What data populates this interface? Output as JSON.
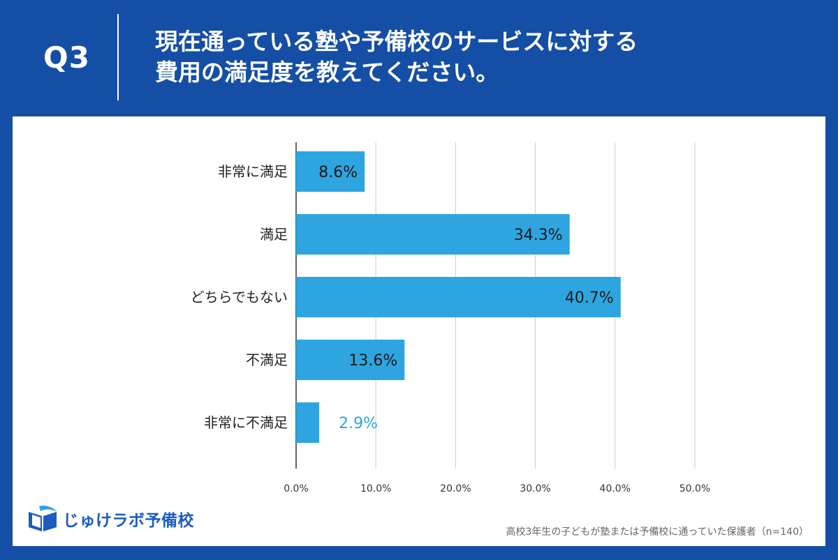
{
  "header": {
    "question_no": "Q3",
    "title_line1": "現在通っている塾や予備校のサービスに対する",
    "title_line2": "費用の満足度を教えてください。"
  },
  "brand": {
    "logo_icon": "open-book-icon",
    "name": "じゅけラボ予備校"
  },
  "footnote": "高校3年生の子どもが塾または予備校に通っていた保護者（n=140）",
  "colors": {
    "header_bg": "#154ea5",
    "bar": "#2ea5e0",
    "label_inside": "#1a1a1a",
    "label_outside": "#2ea5e0",
    "grid": "#cccccc"
  },
  "chart_data": {
    "type": "bar",
    "orientation": "horizontal",
    "categories": [
      "非常に満足",
      "満足",
      "どちらでもない",
      "不満足",
      "非常に不満足"
    ],
    "values": [
      8.6,
      34.3,
      40.7,
      13.6,
      2.9
    ],
    "data_labels": [
      "8.6%",
      "34.3%",
      "40.7%",
      "13.6%",
      "2.9%"
    ],
    "xlim": [
      0,
      50
    ],
    "x_ticks": [
      0,
      10,
      20,
      30,
      40,
      50
    ],
    "x_tick_labels": [
      "0.0%",
      "10.0%",
      "20.0%",
      "30.0%",
      "40.0%",
      "50.0%"
    ],
    "grid": true,
    "legend": "none",
    "title": "",
    "xlabel": "",
    "ylabel": ""
  }
}
